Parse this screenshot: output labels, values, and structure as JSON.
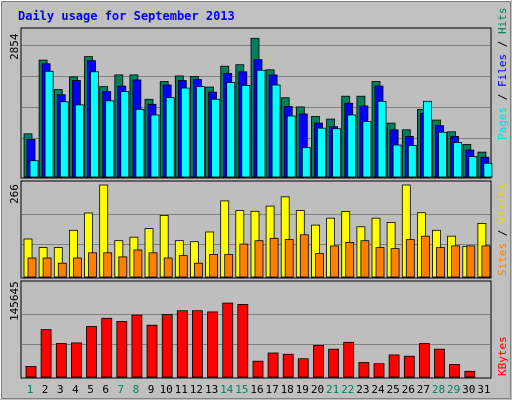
{
  "chart_data": {
    "type": "bar",
    "title": "Daily usage for September 2013",
    "categories": [
      "1",
      "2",
      "3",
      "4",
      "5",
      "6",
      "7",
      "8",
      "9",
      "10",
      "11",
      "12",
      "13",
      "14",
      "15",
      "16",
      "17",
      "18",
      "19",
      "20",
      "21",
      "22",
      "23",
      "24",
      "25",
      "26",
      "27",
      "28",
      "29",
      "30",
      "31"
    ],
    "weekend_days": [
      "1",
      "7",
      "8",
      "14",
      "15",
      "21",
      "22",
      "28",
      "29"
    ],
    "panels": [
      {
        "id": "usage",
        "ymax_label": "2854",
        "ylim": [
          0,
          2854
        ],
        "series": [
          {
            "name": "Hits",
            "color": "#00805C",
            "values": [
              850,
              2300,
              1720,
              1970,
              2370,
              1780,
              2010,
              2010,
              1530,
              1880,
              1990,
              1980,
              1770,
              2180,
              2210,
              2730,
              2110,
              1560,
              1380,
              1190,
              1140,
              1590,
              1590,
              1880,
              1060,
              930,
              1330,
              1120,
              890,
              640,
              490
            ]
          },
          {
            "name": "Files",
            "color": "#0000FF",
            "values": [
              740,
              2230,
              1620,
              1900,
              2290,
              1680,
              1790,
              1910,
              1430,
              1810,
              1900,
              1920,
              1670,
              2040,
              2070,
              2310,
              2010,
              1390,
              1240,
              1060,
              990,
              1450,
              1400,
              1790,
              930,
              800,
              1250,
              1010,
              800,
              530,
              390
            ]
          },
          {
            "name": "Pages",
            "color": "#00FFFF",
            "values": [
              320,
              2080,
              1480,
              1420,
              2070,
              1500,
              1680,
              1330,
              1220,
              1560,
              1750,
              1780,
              1530,
              1860,
              1800,
              2100,
              1810,
              1200,
              580,
              960,
              950,
              1220,
              1090,
              1490,
              630,
              620,
              1490,
              880,
              680,
              400,
              270
            ]
          }
        ],
        "legend": [
          "Pages",
          "Files",
          "Hits"
        ],
        "legend_colors": [
          "#00FFFF",
          "#0000FF",
          "#00805C"
        ]
      },
      {
        "id": "visitors",
        "ymax_label": "266",
        "ylim": [
          0,
          266
        ],
        "series": [
          {
            "name": "Visits",
            "color": "#FFFF00",
            "values": [
              110,
              85,
              85,
              135,
              185,
              266,
              105,
              115,
              140,
              178,
              105,
              102,
              130,
              220,
              192,
              190,
              205,
              232,
              192,
              150,
              170,
              189,
              145,
              170,
              158,
              266,
              186,
              135,
              118,
              88,
              155
            ]
          },
          {
            "name": "Sites",
            "color": "#FF8000",
            "values": [
              55,
              55,
              40,
              55,
              70,
              70,
              58,
              78,
              70,
              55,
              62,
              40,
              65,
              65,
              95,
              105,
              112,
              108,
              122,
              68,
              90,
              100,
              105,
              85,
              82,
              108,
              118,
              85,
              90,
              90,
              90
            ]
          }
        ],
        "legend": [
          "Sites",
          "Visits"
        ],
        "legend_colors": [
          "#FF8000",
          "#FFFF00"
        ]
      },
      {
        "id": "kbytes",
        "ymax_label": "145645",
        "ylim": [
          0,
          145645
        ],
        "series": [
          {
            "name": "KBytes",
            "color": "#FF0000",
            "values": [
              16800,
              75000,
              53000,
              54000,
              80000,
              93000,
              88000,
              98000,
              82000,
              99000,
              105000,
              105000,
              103000,
              117000,
              115000,
              25000,
              38000,
              36000,
              29000,
              50000,
              44000,
              55000,
              23000,
              21000,
              35000,
              33000,
              53000,
              44000,
              20000,
              9000,
              0
            ]
          }
        ],
        "legend": [
          "KBytes"
        ],
        "legend_colors": [
          "#FF0000"
        ]
      }
    ]
  }
}
